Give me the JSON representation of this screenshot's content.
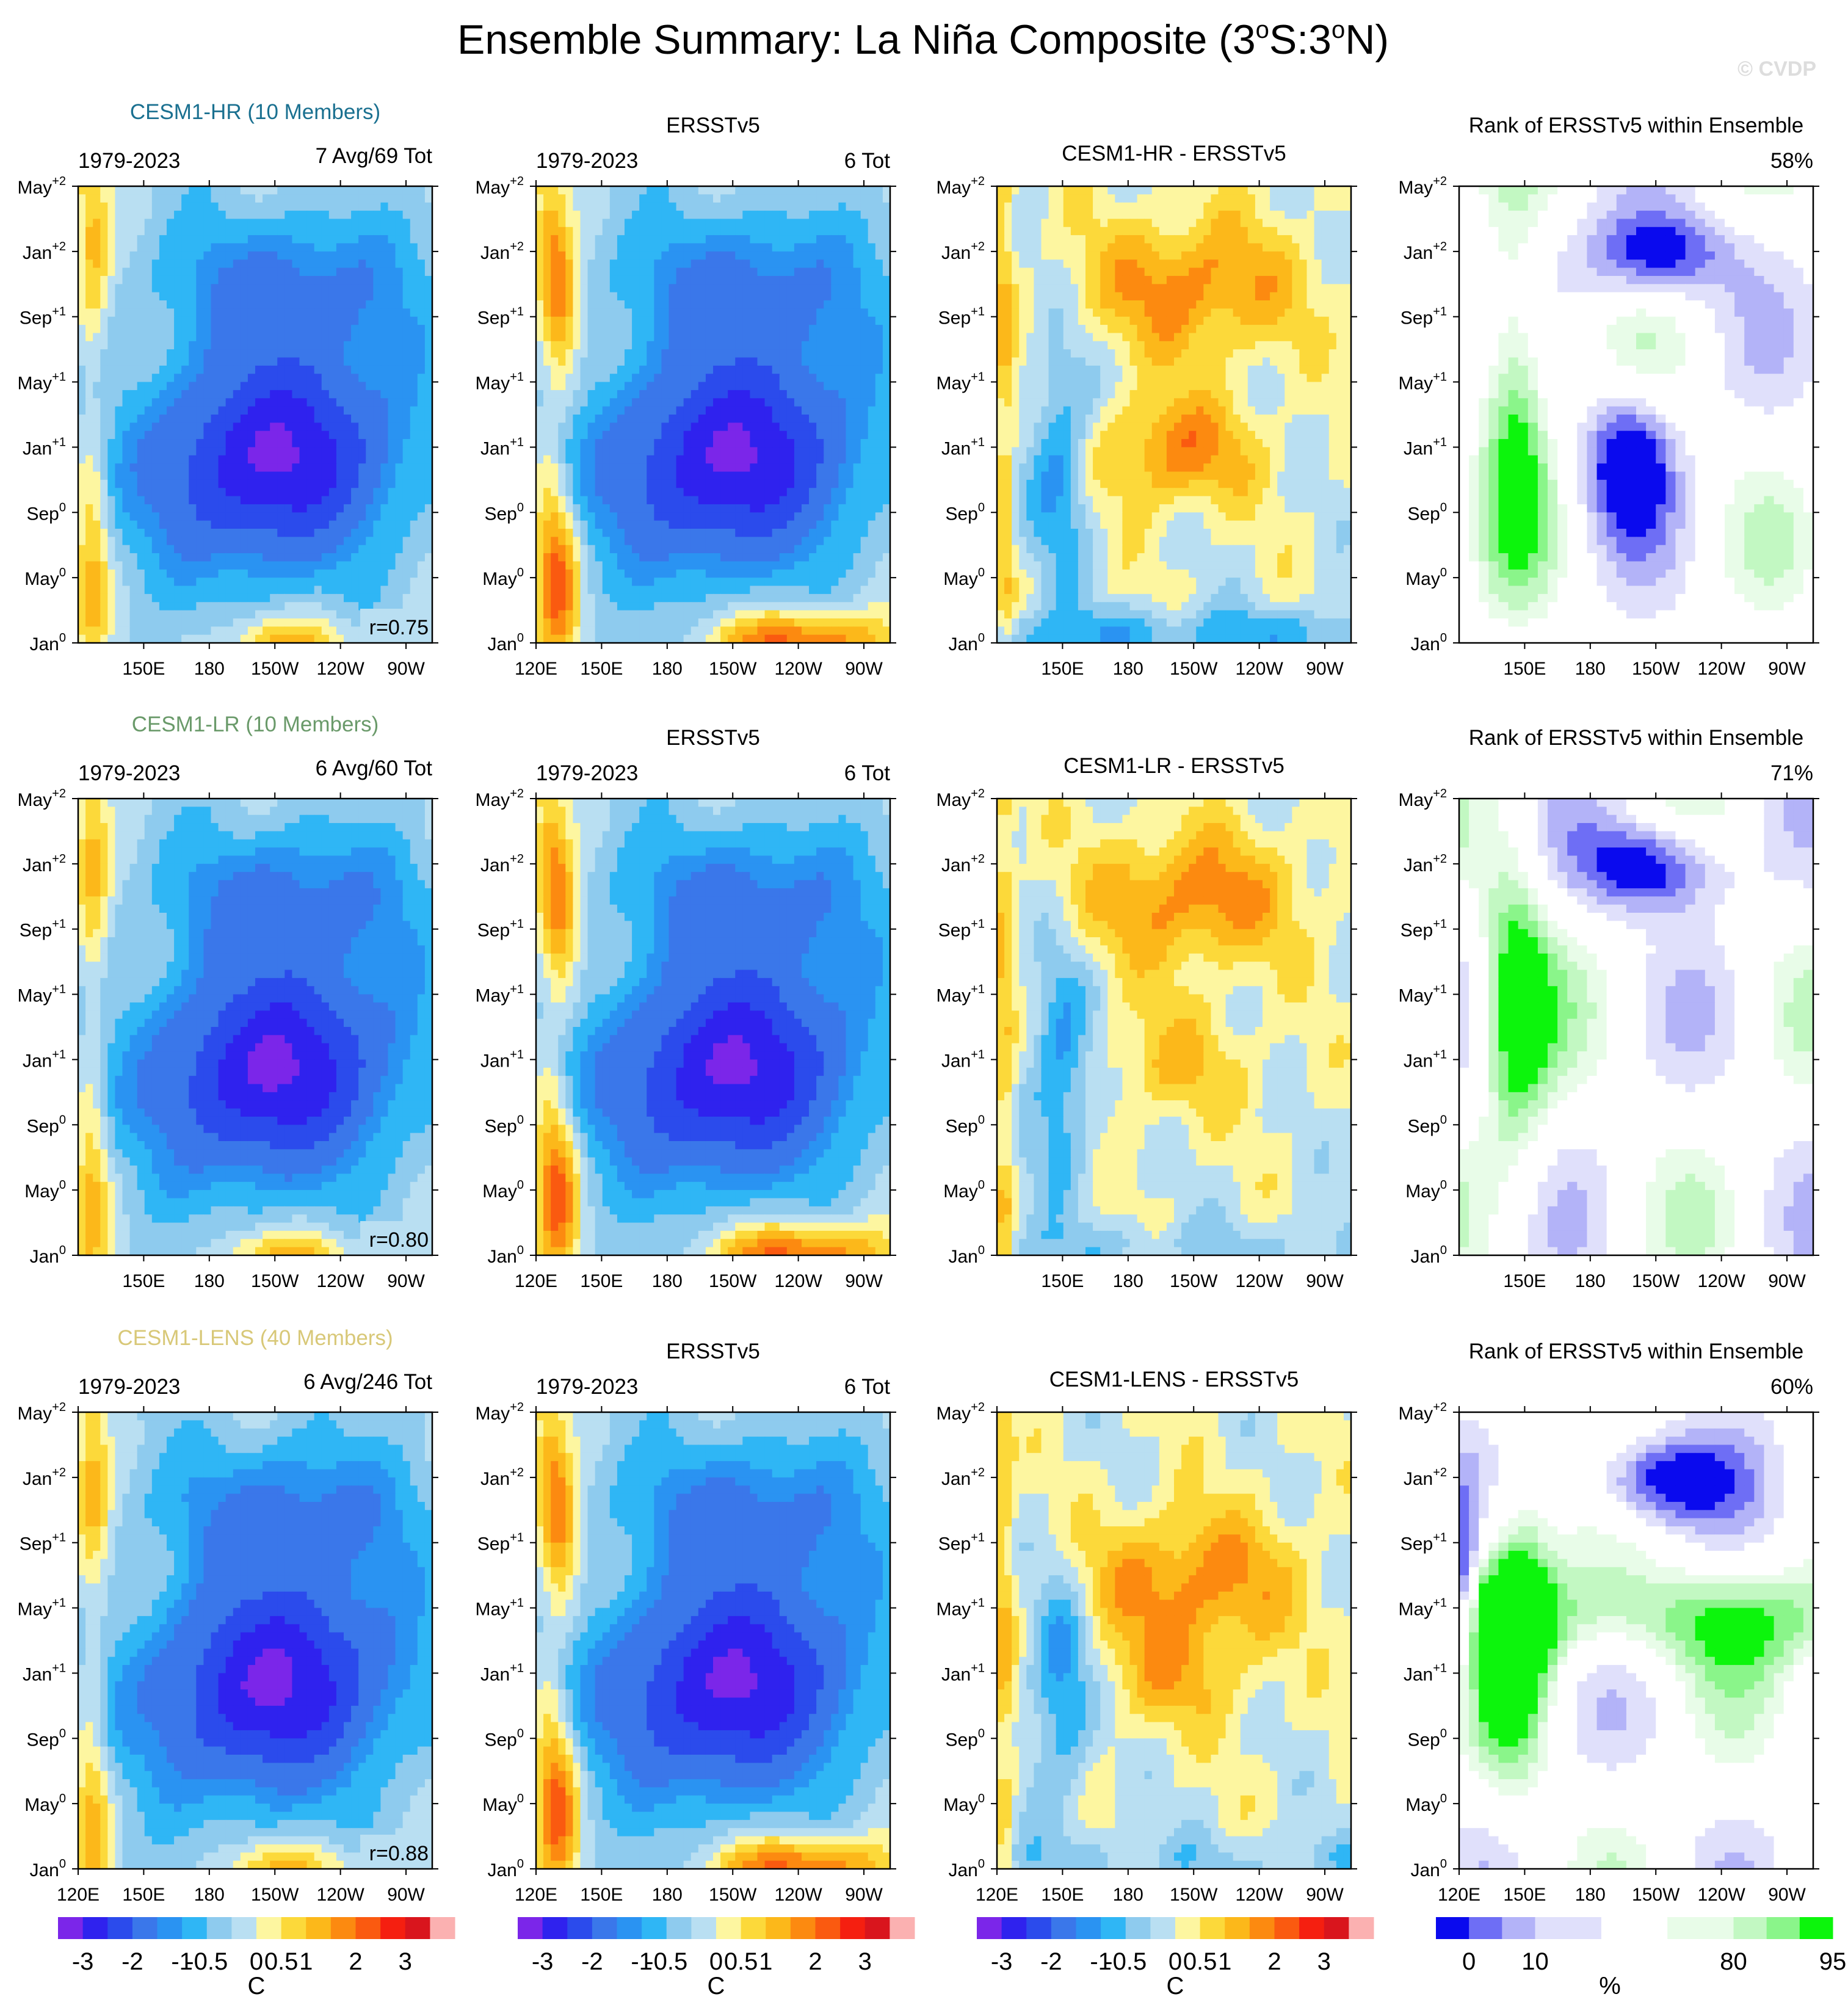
{
  "title": "Ensemble Summary: La Niña Composite (3°S:3°N)",
  "title_parts": {
    "main": "Ensemble Summary: La Niña Composite (3",
    "deg": "o",
    "s": "S:3",
    "deg2": "o",
    "n": "N)"
  },
  "watermark": "© CVDP",
  "colors": {
    "anomaly_scale": [
      "#7b26e9",
      "#2f22ee",
      "#2b4bec",
      "#3a77ea",
      "#2a93f2",
      "#2fb6f5",
      "#8ecbee",
      "#b9dff2",
      "#fdf6a0",
      "#fcd93a",
      "#fcb81a",
      "#fc8a10",
      "#fa5a10",
      "#f51f10",
      "#d9151d",
      "#fbb1b1"
    ],
    "rank_scale": [
      "#0a0aee",
      "#6e6ef5",
      "#b3b3f8",
      "#e0e0fb",
      "#ffffff",
      "#e8fce8",
      "#c2f8c2",
      "#8af58a",
      "#0cf50c"
    ]
  },
  "rows": [
    {
      "model_label": "CESM1-HR (10 Members)",
      "model_label_color": "#1a7090",
      "period": "1979-2023",
      "count": "7 Avg/69 Tot",
      "corr": "r=0.75",
      "obs_title": "ERSSTv5",
      "obs_period": "1979-2023",
      "obs_count": "6 Tot",
      "diff_title": "CESM1-HR - ERSSTv5",
      "rank_title": "Rank of ERSSTv5 within Ensemble",
      "rank_pct": "58%"
    },
    {
      "model_label": "CESM1-LR (10 Members)",
      "model_label_color": "#6a9a6a",
      "period": "1979-2023",
      "count": "6 Avg/60 Tot",
      "corr": "r=0.80",
      "obs_title": "ERSSTv5",
      "obs_period": "1979-2023",
      "obs_count": "6 Tot",
      "diff_title": "CESM1-LR - ERSSTv5",
      "rank_title": "Rank of ERSSTv5 within Ensemble",
      "rank_pct": "71%"
    },
    {
      "model_label": "CESM1-LENS (40 Members)",
      "model_label_color": "#d8c878",
      "period": "1979-2023",
      "count": "6 Avg/246 Tot",
      "corr": "r=0.88",
      "obs_title": "ERSSTv5",
      "obs_period": "1979-2023",
      "obs_count": "6 Tot",
      "diff_title": "CESM1-LENS - ERSSTv5",
      "rank_title": "Rank of ERSSTv5 within Ensemble",
      "rank_pct": "60%"
    }
  ],
  "chart_data": [
    {
      "type": "heatmap",
      "description_role": "Hovmöller longitude-time composites, 12 panels (3 rows x 4 columns)",
      "y_ticks": [
        {
          "base": "May",
          "sup": "+2"
        },
        {
          "base": "Jan",
          "sup": "+2"
        },
        {
          "base": "Sep",
          "sup": "+1"
        },
        {
          "base": "May",
          "sup": "+1"
        },
        {
          "base": "Jan",
          "sup": "+1"
        },
        {
          "base": "Sep",
          "sup": "0"
        },
        {
          "base": "May",
          "sup": "0"
        },
        {
          "base": "Jan",
          "sup": "0"
        }
      ],
      "x_ticks_full": [
        "120E",
        "150E",
        "180",
        "150W",
        "120W",
        "90W"
      ],
      "x_ticks_short": [
        "150E",
        "180",
        "150W",
        "120W",
        "90W"
      ],
      "x_range_deg_east": [
        120,
        282
      ],
      "y_range_months": [
        0,
        28
      ]
    },
    {
      "type": "heatmap",
      "role": "colorbar-anomaly",
      "unit": "C",
      "labels": [
        "-3",
        "-2",
        "-1",
        "-0.5",
        "0",
        "0.5",
        "1",
        "2",
        "3"
      ]
    },
    {
      "type": "heatmap",
      "role": "colorbar-rank",
      "unit": "%",
      "labels": [
        "0",
        "10",
        "80",
        "95"
      ]
    }
  ]
}
